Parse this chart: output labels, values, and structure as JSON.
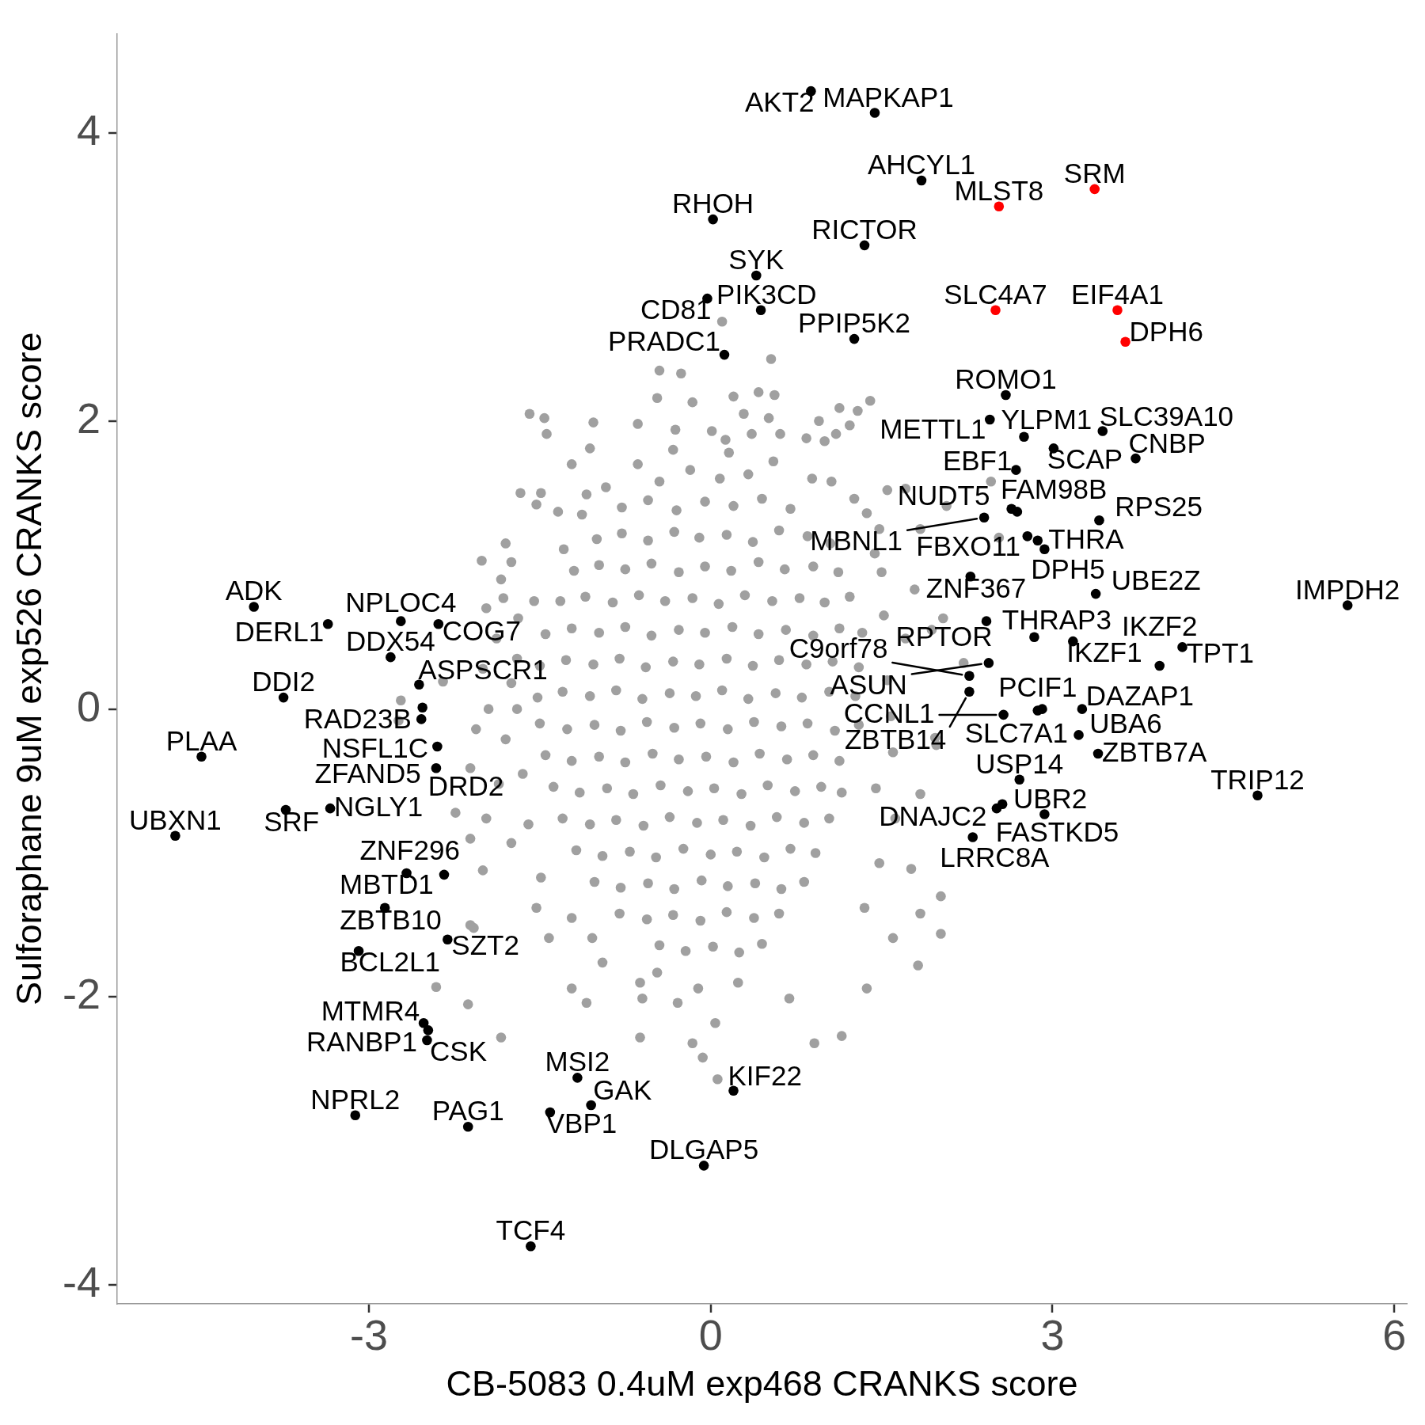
{
  "chart_data": {
    "type": "scatter",
    "xlabel": "CB-5083 0.4uM exp468 CRANKS score",
    "ylabel": "Sulforaphane 9uM exp526 CRANKS score",
    "xlim": [
      -5.21,
      6.11
    ],
    "ylim": [
      -4.13,
      4.69
    ],
    "xticks": [
      -3,
      0,
      3,
      6
    ],
    "yticks": [
      -4,
      -2,
      0,
      2,
      4
    ],
    "grid": false,
    "marker": "circle",
    "series": [
      {
        "color": "#a0a0a0",
        "x": [
          -0.45,
          -0.18,
          0.08,
          0.33,
          -0.78,
          -0.55,
          -0.3,
          -0.05,
          0.2,
          0.45,
          0.7,
          -1,
          -0.78,
          -0.55,
          -0.32,
          -0.1,
          0.14,
          0.37,
          0.6,
          0.85,
          1.05,
          -1.2,
          -0.98,
          -0.75,
          -0.52,
          -0.28,
          -0.05,
          0.18,
          0.42,
          0.65,
          0.9,
          1.12,
          -1.32,
          -1.1,
          -0.86,
          -0.63,
          -0.4,
          -0.16,
          0.07,
          0.3,
          0.54,
          0.78,
          1,
          1.22,
          -1.45,
          -1.22,
          -0.98,
          -0.75,
          -0.52,
          -0.28,
          -0.05,
          0.19,
          0.42,
          0.66,
          0.9,
          1.13,
          1.33,
          -1.5,
          -1.27,
          -1.03,
          -0.8,
          -0.57,
          -0.33,
          -0.1,
          0.14,
          0.37,
          0.6,
          0.84,
          1.07,
          1.3,
          -1.52,
          -1.3,
          -1.06,
          -0.83,
          -0.6,
          -0.36,
          -0.13,
          0.1,
          0.33,
          0.57,
          0.8,
          1.04,
          1.27,
          -1.5,
          -1.26,
          -1.02,
          -0.79,
          -0.56,
          -0.32,
          -0.09,
          0.15,
          0.38,
          0.62,
          0.85,
          1.09,
          1.3,
          -1.45,
          -1.22,
          -0.98,
          -0.75,
          -0.51,
          -0.28,
          -0.04,
          0.2,
          0.43,
          0.67,
          0.9,
          1.13,
          -1.38,
          -1.15,
          -0.91,
          -0.68,
          -0.44,
          -0.2,
          0.03,
          0.27,
          0.5,
          0.74,
          0.97,
          1.15,
          -1.3,
          -1.06,
          -0.83,
          -0.59,
          -0.36,
          -0.12,
          0.11,
          0.35,
          0.58,
          0.82,
          1.04,
          -1.18,
          -0.95,
          -0.71,
          -0.48,
          -0.24,
          0,
          0.23,
          0.47,
          0.7,
          0.92,
          -1.02,
          -0.79,
          -0.55,
          -0.32,
          -0.08,
          0.15,
          0.39,
          0.62,
          0.82,
          -0.8,
          -0.56,
          -0.33,
          -0.09,
          0.14,
          0.38,
          0.6,
          -0.45,
          -0.22,
          0.02,
          0.25,
          0.45,
          0.1,
          0.53,
          -0.45,
          -0.26,
          -0.47,
          -0.16,
          0.2,
          0.42,
          0.56,
          1.13,
          1.29,
          1.4,
          -1.59,
          -1.46,
          -1.44,
          -1.03,
          -0.64,
          -0.31,
          0.01,
          0.13,
          0.29,
          0.36,
          0.51,
          0.61,
          0.84,
          0.95,
          1,
          1.22,
          -1.06,
          -1.22,
          -1.67,
          -1.49,
          -1.53,
          -1.34,
          -1.09,
          -0.92,
          -1.13,
          -0.64,
          -0.33,
          0.16,
          0.55,
          0.89,
          1.06,
          1.26,
          1.37,
          1.48,
          1.44,
          1.55,
          -1.29,
          -1.75,
          -1.84,
          -1.82,
          -1.97,
          -1.69,
          -1.88,
          -2,
          -1.75,
          -1.95,
          -2.06,
          -1.8,
          -2.11,
          -1.86,
          -2.24,
          -1.97,
          -2.11,
          -1.75,
          -2,
          -1.49,
          -1.53,
          -1.22,
          -2.08,
          -1.42,
          -1.04,
          -0.95,
          -1.22,
          -0.62,
          -0.47,
          -1.09,
          -0.6,
          -0.11,
          0.24,
          0.69,
          0.91,
          1.15,
          1.37,
          1.82,
          -0.29,
          0.04,
          -0.62,
          -0.16,
          -1.84,
          1.6,
          1.84,
          1.35,
          2.02,
          1.62,
          1.84,
          1.48,
          1.97,
          2.04,
          1.79,
          1.71,
          1.84,
          1.71,
          -2.74,
          -2.72,
          -2.35,
          -2.01,
          -1.8,
          -2.13,
          -2.41,
          -2.11,
          -0.07,
          0.06,
          2.07,
          2.53,
          2.46,
          1.1,
          1.94,
          1.98,
          2.22,
          2.02,
          1.76,
          1.55,
          1.6,
          1.52,
          1.58,
          1.45,
          1.5,
          -1.7,
          -1.65,
          -1.7,
          -1.6,
          -1.55
        ],
        "values": [
          1.58,
          1.66,
          1.6,
          1.63,
          1.4,
          1.45,
          1.38,
          1.44,
          1.41,
          1.46,
          1.39,
          1.18,
          1.22,
          1.17,
          1.23,
          1.19,
          1.21,
          1.16,
          1.24,
          1.2,
          1.15,
          0.96,
          1,
          0.97,
          1.01,
          0.95,
          0.99,
          0.96,
          1.02,
          0.97,
          0.99,
          0.95,
          0.75,
          0.78,
          0.74,
          0.79,
          0.75,
          0.77,
          0.73,
          0.79,
          0.75,
          0.77,
          0.74,
          0.78,
          0.52,
          0.56,
          0.53,
          0.57,
          0.51,
          0.55,
          0.53,
          0.57,
          0.52,
          0.55,
          0.51,
          0.56,
          0.53,
          0.3,
          0.34,
          0.31,
          0.35,
          0.29,
          0.33,
          0.31,
          0.35,
          0.3,
          0.34,
          0.31,
          0.33,
          0.29,
          0.08,
          0.12,
          0.09,
          0.13,
          0.07,
          0.11,
          0.09,
          0.13,
          0.07,
          0.11,
          0.08,
          0.12,
          0.09,
          -0.1,
          -0.14,
          -0.11,
          -0.15,
          -0.09,
          -0.13,
          -0.1,
          -0.14,
          -0.09,
          -0.12,
          -0.1,
          -0.15,
          -0.11,
          -0.32,
          -0.36,
          -0.33,
          -0.37,
          -0.31,
          -0.35,
          -0.33,
          -0.37,
          -0.31,
          -0.35,
          -0.32,
          -0.36,
          -0.54,
          -0.58,
          -0.55,
          -0.59,
          -0.53,
          -0.57,
          -0.55,
          -0.59,
          -0.53,
          -0.57,
          -0.54,
          -0.58,
          -0.76,
          -0.8,
          -0.77,
          -0.81,
          -0.75,
          -0.79,
          -0.77,
          -0.81,
          -0.75,
          -0.79,
          -0.76,
          -0.98,
          -1.02,
          -0.99,
          -1.03,
          -0.97,
          -1.01,
          -0.99,
          -1.03,
          -0.97,
          -1,
          -1.2,
          -1.24,
          -1.21,
          -1.25,
          -1.19,
          -1.23,
          -1.21,
          -1.25,
          -1.2,
          -1.42,
          -1.46,
          -1.43,
          -1.47,
          -1.41,
          -1.45,
          -1.42,
          -1.64,
          -1.68,
          -1.65,
          -1.69,
          -1.63,
          2.69,
          2.43,
          2.35,
          2.33,
          2.16,
          2.13,
          2.17,
          2.2,
          2.18,
          2.09,
          2.07,
          2.14,
          2.05,
          2.02,
          1.91,
          1.99,
          1.98,
          1.94,
          1.93,
          1.87,
          2.05,
          1.91,
          2.02,
          1.91,
          1.88,
          2,
          1.86,
          1.97,
          1.81,
          1.7,
          1.5,
          1.5,
          1.42,
          1.37,
          1.49,
          1.54,
          1.35,
          1.7,
          1.8,
          1.78,
          1.72,
          1.6,
          1.58,
          1.46,
          1.36,
          1.25,
          1.08,
          1.52,
          1.11,
          1.02,
          0.9,
          0.77,
          0.7,
          0.63,
          0.49,
          0.28,
          0.18,
          0,
          -0.14,
          -0.21,
          -0.41,
          -0.52,
          -0.72,
          -0.76,
          -0.9,
          -0.93,
          -1.12,
          -1.17,
          -1.38,
          -1.45,
          -1.52,
          -1.59,
          -1.59,
          -1.76,
          -1.94,
          -1.9,
          -1.83,
          -2.04,
          -2.01,
          -1.94,
          -1.9,
          -2.01,
          -2.32,
          -2.27,
          -1.94,
          -1.78,
          -2.04,
          -2.18,
          -2.28,
          -2.32,
          -2.28,
          -1.59,
          -1.42,
          -1.38,
          -1.56,
          -0.76,
          -0.59,
          -1.07,
          -0.2,
          0.63,
          0.83,
          0.49,
          1.25,
          1.53,
          -0.08,
          0.06,
          0.19,
          1.03,
          1.15,
          -2.05,
          -1.93,
          -1.5,
          -2.42,
          -2.57,
          1.41,
          1.19,
          1.58,
          1.91,
          0.55,
          -0.25,
          0.32,
          -1.3,
          -1.11,
          0.2,
          -0.3,
          0.65,
          -0.05,
          -0.55,
          0.95,
          0.35,
          -0.45,
          0,
          -0.8,
          0.75
        ]
      },
      {
        "color": "#000000",
        "x": [
          0.88,
          1.44,
          1.85,
          0.02,
          1.35,
          0.4,
          -0.03,
          0.44,
          1.26,
          0.12,
          2.59,
          2.45,
          2.75,
          3.44,
          3.01,
          3.73,
          2.68,
          2.64,
          2.69,
          2.4,
          3.41,
          2.78,
          2.87,
          2.93,
          2.28,
          2.42,
          3.38,
          5.59,
          2.84,
          3.18,
          4.14,
          2.44,
          2.27,
          2.27,
          3.94,
          2.57,
          2.87,
          2.91,
          3.26,
          3.23,
          3.4,
          2.71,
          2.56,
          2.51,
          2.93,
          4.8,
          2.3,
          -4.01,
          -3.36,
          -2.72,
          -2.39,
          -2.81,
          -2.56,
          -2.53,
          -2.54,
          -3.75,
          -4.47,
          -2.4,
          -2.41,
          -3.73,
          -3.34,
          -4.7,
          -2.67,
          -2.34,
          -2.86,
          -2.31,
          -3.09,
          -2.52,
          -2.48,
          -2.49,
          -3.12,
          -2.13,
          -1.41,
          -1.17,
          -1.05,
          0.2,
          -0.06,
          -1.58
        ],
        "values": [
          4.29,
          4.14,
          3.67,
          3.4,
          3.22,
          3.01,
          2.85,
          2.77,
          2.57,
          2.46,
          2.18,
          2.01,
          1.89,
          1.93,
          1.81,
          1.74,
          1.66,
          1.39,
          1.37,
          1.33,
          1.31,
          1.2,
          1.17,
          1.11,
          0.92,
          0.61,
          0.8,
          0.72,
          0.5,
          0.47,
          0.43,
          0.32,
          0.23,
          0.12,
          0.3,
          -0.04,
          -0.01,
          0,
          0,
          -0.18,
          -0.31,
          -0.49,
          -0.66,
          -0.69,
          -0.73,
          -0.6,
          -0.89,
          0.71,
          0.59,
          0.61,
          0.59,
          0.36,
          0.17,
          0.01,
          -0.07,
          0.08,
          -0.33,
          -0.26,
          -0.41,
          -0.7,
          -0.69,
          -0.88,
          -1.14,
          -1.15,
          -1.38,
          -1.6,
          -1.68,
          -2.18,
          -2.23,
          -2.3,
          -2.82,
          -2.9,
          -2.8,
          -2.56,
          -2.75,
          -2.65,
          -3.17,
          -3.73
        ]
      },
      {
        "color": "#ff0000",
        "x": [
          3.37,
          2.53,
          2.5,
          3.57,
          3.64
        ],
        "values": [
          3.61,
          3.49,
          2.77,
          2.77,
          2.55
        ]
      }
    ],
    "annotations": [
      {
        "text": "AKT2",
        "x": 0.88,
        "y": 4.29
      },
      {
        "text": "MAPKAP1",
        "x": 1.44,
        "y": 4.14
      },
      {
        "text": "AHCYL1",
        "x": 1.85,
        "y": 3.67
      },
      {
        "text": "RHOH",
        "x": 0.02,
        "y": 3.4
      },
      {
        "text": "RICTOR",
        "x": 1.35,
        "y": 3.22
      },
      {
        "text": "SYK",
        "x": 0.4,
        "y": 3.01
      },
      {
        "text": "CD81",
        "x": -0.03,
        "y": 2.85
      },
      {
        "text": "PIK3CD",
        "x": 0.44,
        "y": 2.77
      },
      {
        "text": "PPIP5K2",
        "x": 1.26,
        "y": 2.57
      },
      {
        "text": "PRADC1",
        "x": 0.12,
        "y": 2.46
      },
      {
        "text": "ROMO1",
        "x": 2.59,
        "y": 2.18
      },
      {
        "text": "METTL1",
        "x": 2.45,
        "y": 2.01
      },
      {
        "text": "YLPM1",
        "x": 2.75,
        "y": 1.89
      },
      {
        "text": "SLC39A10",
        "x": 3.44,
        "y": 1.93
      },
      {
        "text": "SCAP",
        "x": 3.01,
        "y": 1.81
      },
      {
        "text": "CNBP",
        "x": 3.73,
        "y": 1.74
      },
      {
        "text": "EBF1",
        "x": 2.68,
        "y": 1.66
      },
      {
        "text": "FAM98B",
        "x": 2.64,
        "y": 1.39
      },
      {
        "text": "NUDT5",
        "x": 2.69,
        "y": 1.37
      },
      {
        "text": "MBNL1",
        "x": 2.4,
        "y": 1.33
      },
      {
        "text": "RPS25",
        "x": 3.41,
        "y": 1.31
      },
      {
        "text": "FBXO11",
        "x": 2.78,
        "y": 1.2
      },
      {
        "text": "DPH5",
        "x": 2.87,
        "y": 1.17
      },
      {
        "text": "THRA",
        "x": 2.93,
        "y": 1.11
      },
      {
        "text": "ZNF367",
        "x": 2.28,
        "y": 0.92
      },
      {
        "text": "RPTOR",
        "x": 2.42,
        "y": 0.61
      },
      {
        "text": "UBE2Z",
        "x": 3.38,
        "y": 0.8
      },
      {
        "text": "IMPDH2",
        "x": 5.59,
        "y": 0.72
      },
      {
        "text": "THRAP3",
        "x": 2.84,
        "y": 0.5
      },
      {
        "text": "IKZF1",
        "x": 3.18,
        "y": 0.47
      },
      {
        "text": "TPT1",
        "x": 4.14,
        "y": 0.43
      },
      {
        "text": "ASUN",
        "x": 2.44,
        "y": 0.32
      },
      {
        "text": "C9orf78",
        "x": 2.27,
        "y": 0.23
      },
      {
        "text": "ZBTB14",
        "x": 2.27,
        "y": 0.12
      },
      {
        "text": "IKZF2",
        "x": 3.94,
        "y": 0.3
      },
      {
        "text": "CCNL1",
        "x": 2.57,
        "y": -0.04
      },
      {
        "text": "PCIF1",
        "x": 2.87,
        "y": -0.01
      },
      {
        "text": "SLC7A1",
        "x": 2.91,
        "y": 0
      },
      {
        "text": "DAZAP1",
        "x": 3.26,
        "y": 0
      },
      {
        "text": "UBA6",
        "x": 3.23,
        "y": -0.18
      },
      {
        "text": "ZBTB7A",
        "x": 3.4,
        "y": -0.31
      },
      {
        "text": "USP14",
        "x": 2.71,
        "y": -0.49
      },
      {
        "text": "DNAJC2",
        "x": 2.56,
        "y": -0.66
      },
      {
        "text": "FASTKD5",
        "x": 2.51,
        "y": -0.69
      },
      {
        "text": "UBR2",
        "x": 2.93,
        "y": -0.73
      },
      {
        "text": "TRIP12",
        "x": 4.8,
        "y": -0.6
      },
      {
        "text": "LRRC8A",
        "x": 2.3,
        "y": -0.89
      },
      {
        "text": "ADK",
        "x": -4.01,
        "y": 0.71
      },
      {
        "text": "DERL1",
        "x": -3.36,
        "y": 0.59
      },
      {
        "text": "NPLOC4",
        "x": -2.72,
        "y": 0.61
      },
      {
        "text": "COG7",
        "x": -2.39,
        "y": 0.59
      },
      {
        "text": "DDX54",
        "x": -2.81,
        "y": 0.36
      },
      {
        "text": "ASPSCR1",
        "x": -2.56,
        "y": 0.17
      },
      {
        "text": "RAD23B",
        "x": -2.53,
        "y": 0.01
      },
      {
        "text": "NSFL1C",
        "x": -2.54,
        "y": -0.07
      },
      {
        "text": "DDI2",
        "x": -3.75,
        "y": 0.08
      },
      {
        "text": "PLAA",
        "x": -4.47,
        "y": -0.33
      },
      {
        "text": "ZFAND5",
        "x": -2.4,
        "y": -0.26
      },
      {
        "text": "DRD2",
        "x": -2.41,
        "y": -0.41
      },
      {
        "text": "SRF",
        "x": -3.73,
        "y": -0.7
      },
      {
        "text": "NGLY1",
        "x": -3.34,
        "y": -0.69
      },
      {
        "text": "UBXN1",
        "x": -4.7,
        "y": -0.88
      },
      {
        "text": "MBTD1",
        "x": -2.67,
        "y": -1.14
      },
      {
        "text": "ZNF296",
        "x": -2.34,
        "y": -1.15
      },
      {
        "text": "ZBTB10",
        "x": -2.86,
        "y": -1.38
      },
      {
        "text": "SZT2",
        "x": -2.31,
        "y": -1.6
      },
      {
        "text": "BCL2L1",
        "x": -3.09,
        "y": -1.68
      },
      {
        "text": "MTMR4",
        "x": -2.52,
        "y": -2.18
      },
      {
        "text": "RANBP1",
        "x": -2.48,
        "y": -2.23
      },
      {
        "text": "CSK",
        "x": -2.49,
        "y": -2.3
      },
      {
        "text": "NPRL2",
        "x": -3.12,
        "y": -2.82
      },
      {
        "text": "PAG1",
        "x": -2.13,
        "y": -2.9
      },
      {
        "text": "VBP1",
        "x": -1.41,
        "y": -2.8
      },
      {
        "text": "MSI2",
        "x": -1.17,
        "y": -2.56
      },
      {
        "text": "GAK",
        "x": -1.05,
        "y": -2.75
      },
      {
        "text": "KIF22",
        "x": 0.2,
        "y": -2.65
      },
      {
        "text": "DLGAP5",
        "x": -0.06,
        "y": -3.17
      },
      {
        "text": "TCF4",
        "x": -1.58,
        "y": -3.73
      },
      {
        "text": "SRM",
        "x": 3.37,
        "y": 3.61
      },
      {
        "text": "MLST8",
        "x": 2.53,
        "y": 3.49
      },
      {
        "text": "SLC4A7",
        "x": 2.5,
        "y": 2.77
      },
      {
        "text": "EIF4A1",
        "x": 3.57,
        "y": 2.77
      },
      {
        "text": "DPH6",
        "x": 3.64,
        "y": 2.55
      }
    ]
  }
}
